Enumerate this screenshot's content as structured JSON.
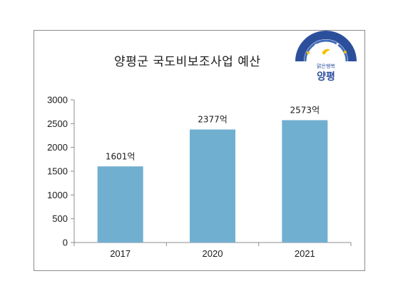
{
  "chart_data": {
    "type": "bar",
    "title": "양평군 국도비보조사업 예산",
    "categories": [
      "2017",
      "2020",
      "2021"
    ],
    "values": [
      1601,
      2377,
      2573
    ],
    "data_labels": [
      "1601억",
      "2377억",
      "2573억"
    ],
    "ylim": [
      0,
      3000
    ],
    "y_ticks": [
      0,
      500,
      1000,
      1500,
      2000,
      2500,
      3000
    ],
    "grid": false,
    "legend": "none",
    "bar_color": "#71afd0"
  },
  "logo": {
    "text_small": "맑은행복",
    "text_large": "양평",
    "colors": {
      "arc": "#2c4f9c",
      "text": "#2c4f9c",
      "accent": "#f2c200"
    }
  }
}
